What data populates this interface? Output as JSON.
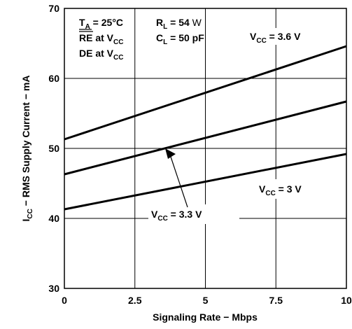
{
  "chart_data": {
    "type": "line",
    "xlabel": "Signaling Rate − Mbps",
    "ylabel_parts": [
      "I",
      "CC",
      " − RMS Supply Current − mA"
    ],
    "xlim": [
      0,
      10
    ],
    "ylim": [
      30,
      70
    ],
    "x_ticks": [
      0,
      2.5,
      5,
      7.5,
      10
    ],
    "x_tick_labels": [
      "0",
      "2.5",
      "5",
      "7.5",
      "10"
    ],
    "y_ticks": [
      30,
      40,
      50,
      60,
      70
    ],
    "y_tick_labels": [
      "30",
      "40",
      "50",
      "60",
      "70"
    ],
    "grid": true,
    "series": [
      {
        "name": "VCC = 3.6 V",
        "x": [
          0,
          10
        ],
        "y": [
          51.3,
          64.6
        ]
      },
      {
        "name": "VCC = 3.3 V",
        "x": [
          0,
          10
        ],
        "y": [
          46.3,
          56.7
        ]
      },
      {
        "name": "VCC = 3 V",
        "x": [
          0,
          10
        ],
        "y": [
          41.3,
          49.2
        ]
      }
    ],
    "annotations": {
      "cond1": {
        "parts": [
          "T",
          "A",
          " = 25°C"
        ]
      },
      "cond2": {
        "parts": [
          "RE",
          " at V",
          "CC"
        ]
      },
      "cond3": {
        "parts": [
          "DE at V",
          "CC"
        ]
      },
      "cond4": {
        "parts": [
          "R",
          "L",
          " = 54 ",
          "W"
        ]
      },
      "cond5": {
        "parts": [
          "C",
          "L",
          " = 50 pF"
        ]
      },
      "v36": {
        "parts": [
          "V",
          "CC",
          " = 3.6 V"
        ]
      },
      "v33": {
        "parts": [
          "V",
          "CC",
          " = 3.3 V"
        ]
      },
      "v30": {
        "parts": [
          "V",
          "CC",
          " = 3 V"
        ]
      }
    }
  }
}
